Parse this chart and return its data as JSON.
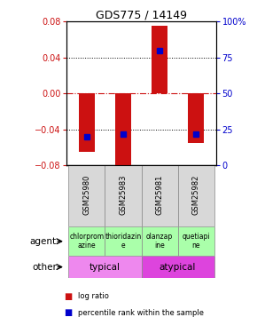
{
  "title": "GDS775 / 14149",
  "samples": [
    "GSM25980",
    "GSM25983",
    "GSM25981",
    "GSM25982"
  ],
  "log_ratios": [
    -0.065,
    -0.085,
    0.075,
    -0.055
  ],
  "percentile_ranks": [
    0.2,
    0.22,
    0.8,
    0.22
  ],
  "ylim_left": [
    -0.08,
    0.08
  ],
  "ylim_right": [
    0,
    1
  ],
  "yticks_left": [
    -0.08,
    -0.04,
    0,
    0.04,
    0.08
  ],
  "yticks_right": [
    0,
    0.25,
    0.5,
    0.75,
    1.0
  ],
  "ytick_labels_right": [
    "0",
    "25",
    "50",
    "75",
    "100%"
  ],
  "bar_color": "#cc1111",
  "marker_color": "#0000cc",
  "agent_labels": [
    "chlorprom\nazine",
    "thioridazin\ne",
    "olanzap\nine",
    "quetiapi\nne"
  ],
  "agent_color": "#aaffaa",
  "other_groups": [
    {
      "label": "typical",
      "span": [
        0,
        2
      ],
      "color": "#ee88ee"
    },
    {
      "label": "atypical",
      "span": [
        2,
        4
      ],
      "color": "#dd44dd"
    }
  ],
  "legend_items": [
    {
      "color": "#cc1111",
      "label": "log ratio"
    },
    {
      "color": "#0000cc",
      "label": "percentile rank within the sample"
    }
  ],
  "dotted_color": "black",
  "zero_line_color": "#cc1111",
  "label_color_left": "#cc1111",
  "label_color_right": "#0000cc",
  "sample_bg": "#d8d8d8"
}
